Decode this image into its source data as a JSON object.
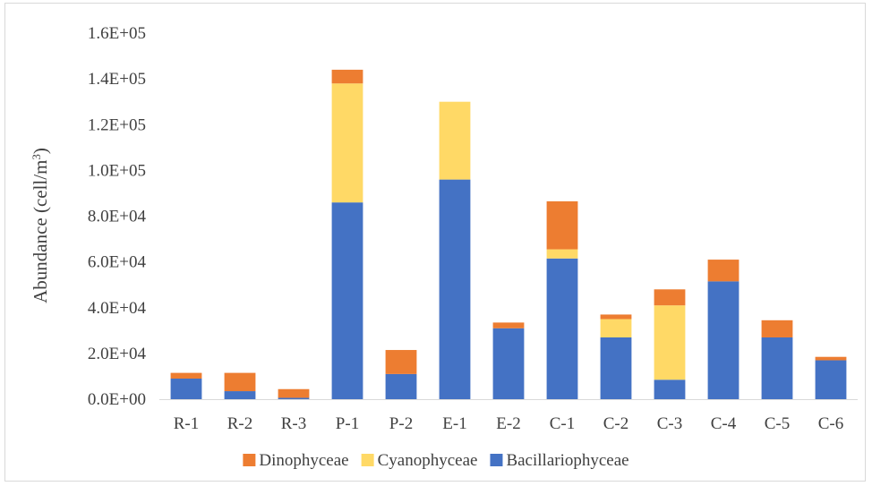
{
  "chart_data": {
    "type": "bar",
    "stacked": true,
    "categories": [
      "R-1",
      "R-2",
      "R-3",
      "P-1",
      "P-2",
      "E-1",
      "E-2",
      "C-1",
      "C-2",
      "C-3",
      "C-4",
      "C-5",
      "C-6"
    ],
    "series": [
      {
        "name": "Bacillariophyceae",
        "color": "#4472C4",
        "values": [
          9000,
          3500,
          600,
          86000,
          11000,
          96000,
          31000,
          61500,
          27000,
          8500,
          51500,
          27000,
          17000
        ]
      },
      {
        "name": "Cyanophyceae",
        "color": "#FFD966",
        "values": [
          0,
          0,
          0,
          52000,
          0,
          34000,
          0,
          4000,
          8000,
          32500,
          0,
          0,
          0
        ]
      },
      {
        "name": "Dinophyceae",
        "color": "#ED7D31",
        "values": [
          2500,
          8000,
          3800,
          6000,
          10500,
          0,
          2500,
          21000,
          2000,
          7000,
          9500,
          7500,
          1500
        ]
      }
    ],
    "legend_order": [
      "Dinophyceae",
      "Cyanophyceae",
      "Bacillariophyceae"
    ],
    "legend_position": "bottom",
    "title": "",
    "xlabel": "",
    "ylabel": "Abundance  (cell/m³)",
    "ylabel_parts": {
      "main": "Abundance  (cell/m",
      "sup": "3",
      "close": ")"
    },
    "ylim": [
      0,
      160000
    ],
    "yticks": [
      0,
      20000,
      40000,
      60000,
      80000,
      100000,
      120000,
      140000,
      160000
    ],
    "ytick_labels": [
      "0.0E+00",
      "2.0E+04",
      "4.0E+04",
      "6.0E+04",
      "8.0E+04",
      "1.0E+05",
      "1.2E+05",
      "1.4E+05",
      "1.6E+05"
    ],
    "grid": false
  }
}
